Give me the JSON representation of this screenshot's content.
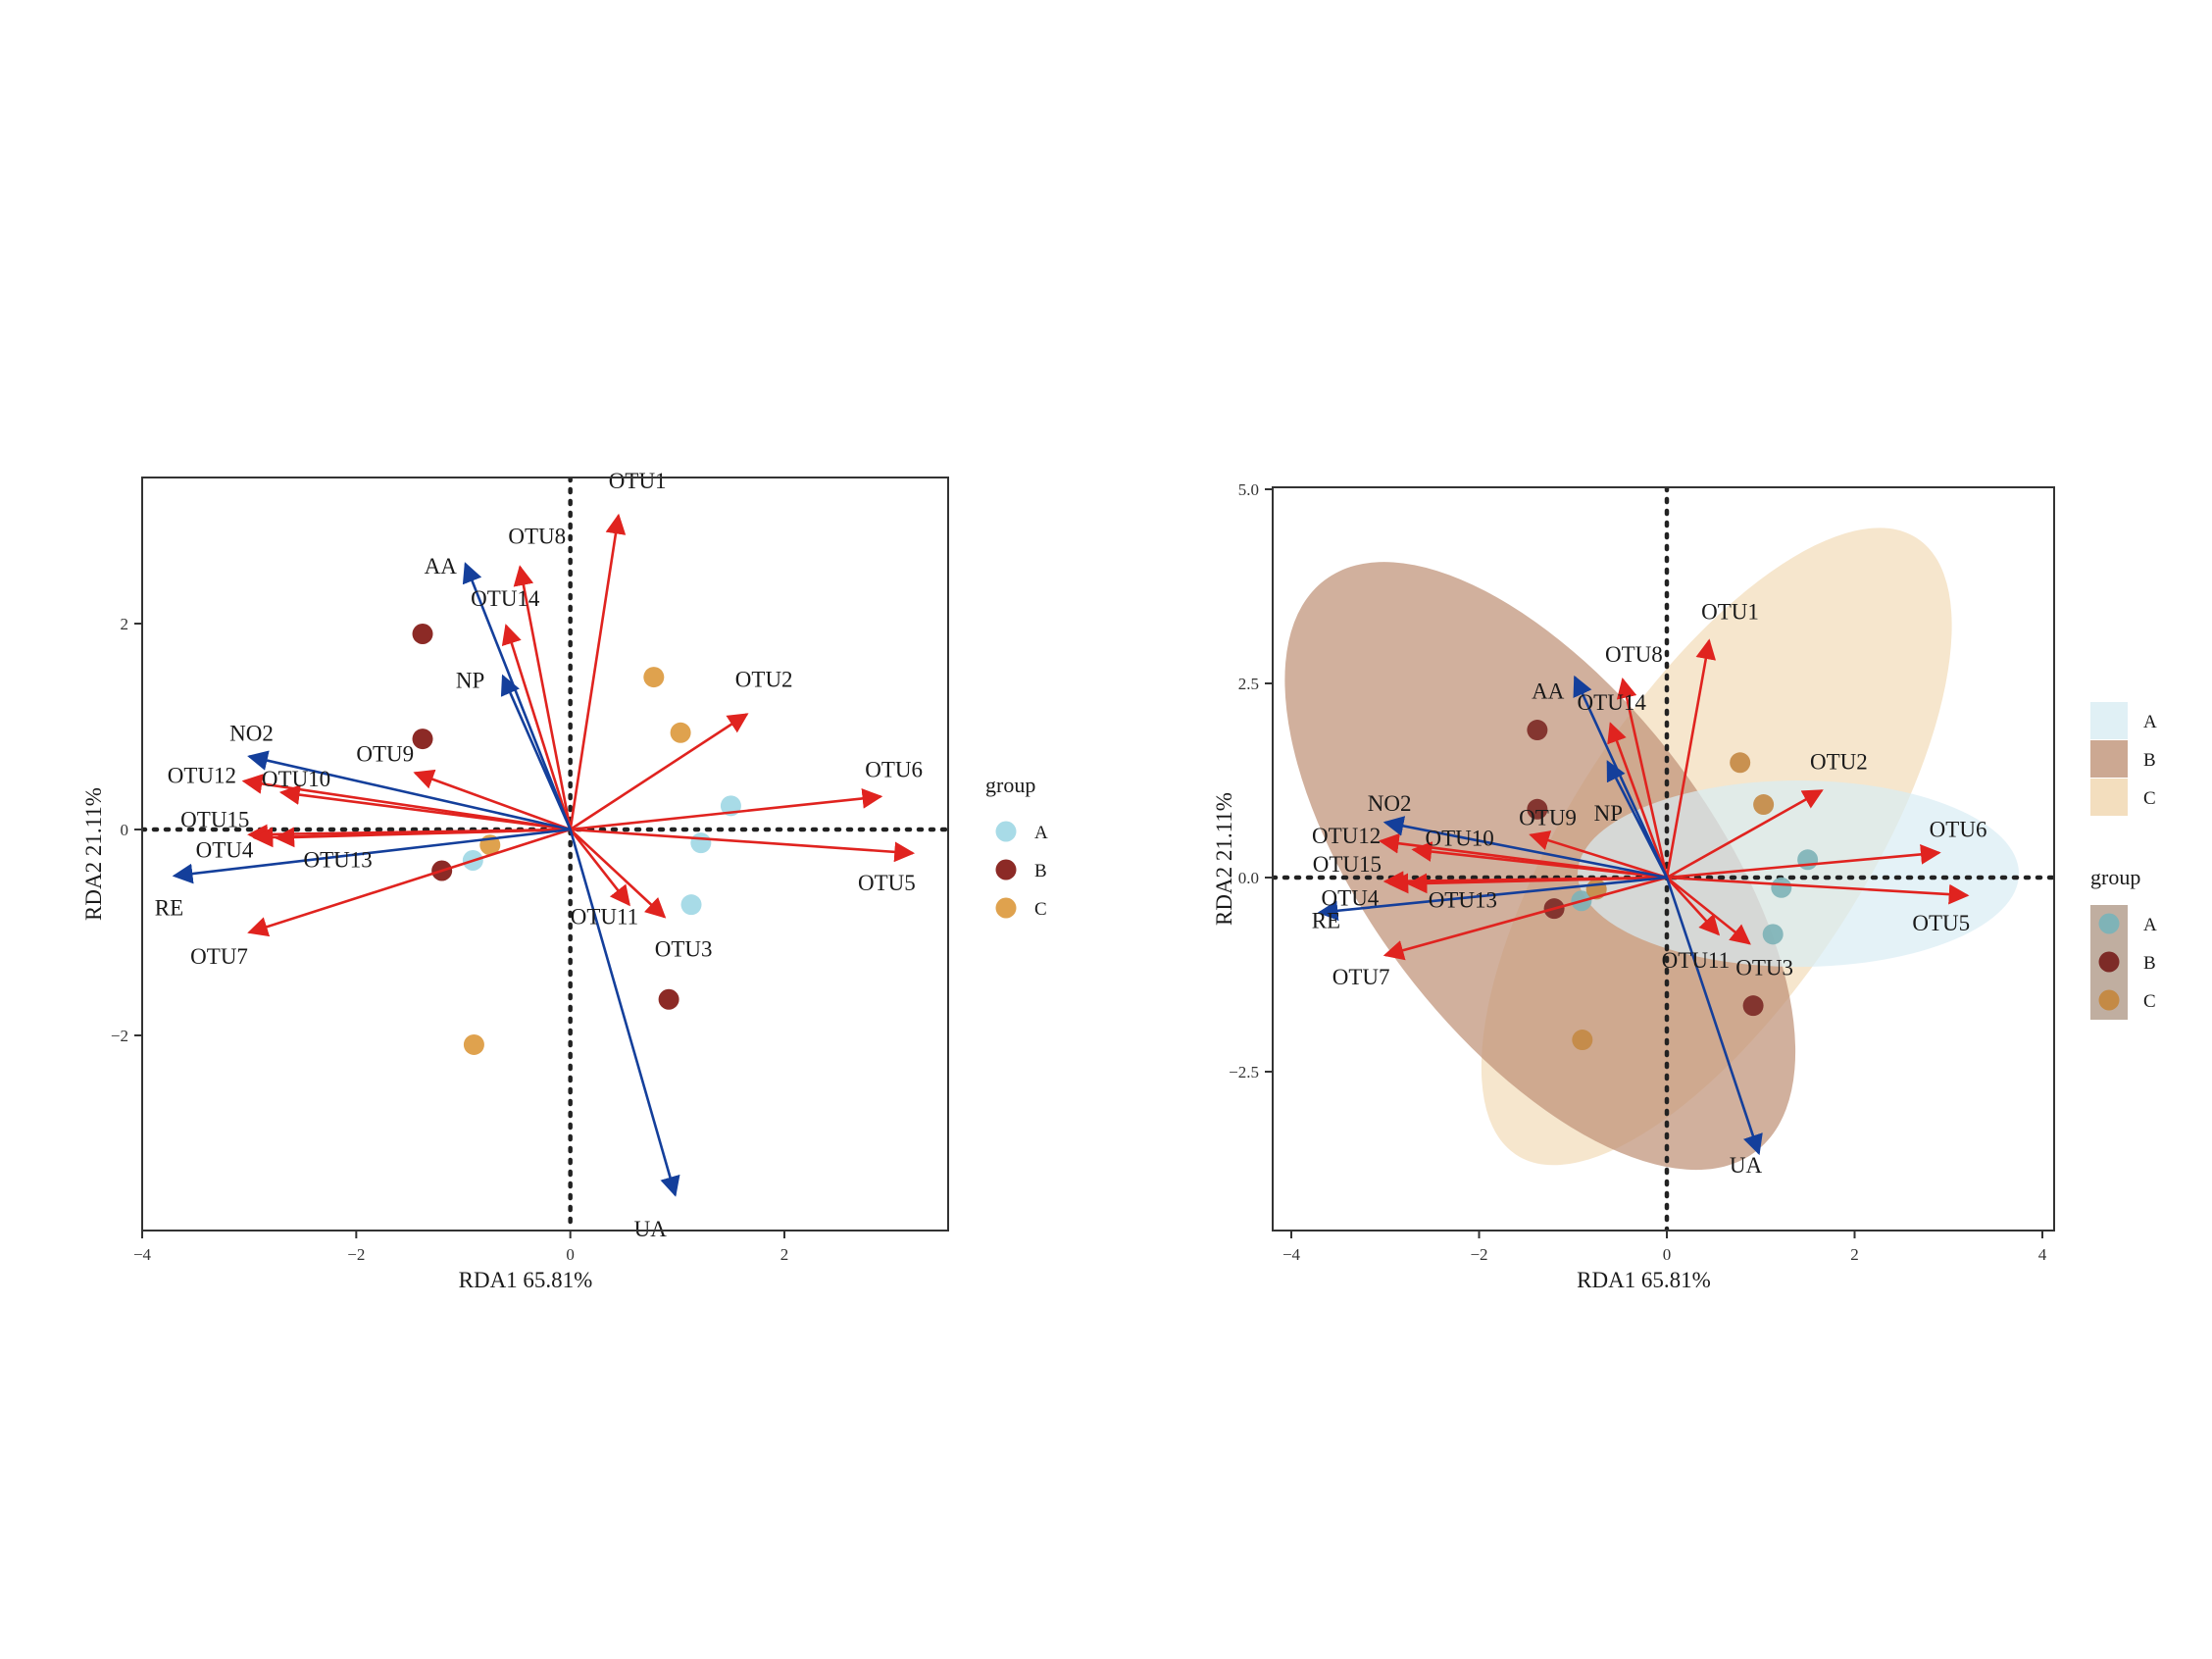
{
  "colors": {
    "otu_vector": "#e0231f",
    "env_vector": "#143f9b",
    "group_A": "#a8dbe7",
    "group_B": "#8c2a26",
    "group_C": "#dfa24e",
    "ellipse_A": "#d8ecf3",
    "ellipse_B": "#bf9277",
    "ellipse_C": "#f0d6ae",
    "point_A_in_right": "#7fb3b7",
    "point_B_in_right": "#7d2b27",
    "point_C_in_right": "#c48a45",
    "axis": "#333333"
  },
  "chart_data": [
    {
      "type": "scatter",
      "subtype": "rda-biplot",
      "title": "",
      "xlabel": "RDA1 65.81%",
      "ylabel": "RDA2 21.11%",
      "xlim": [
        -4,
        3.5
      ],
      "ylim": [
        -3.9,
        3.4
      ],
      "xticks": [
        -4,
        -2,
        0,
        2
      ],
      "yticks": [
        -2,
        0,
        2
      ],
      "xtick_labels": [
        "−4",
        "−2",
        "0",
        "2"
      ],
      "ytick_labels": [
        "−2",
        "0",
        "2"
      ],
      "grid": false,
      "reference_lines": "dotted lines at x=0 and y=0",
      "legend": {
        "title": "group",
        "position": "right",
        "entries": [
          "A",
          "B",
          "C"
        ]
      },
      "points": [
        {
          "group": "A",
          "x": 1.5,
          "y": 0.23
        },
        {
          "group": "A",
          "x": 1.22,
          "y": -0.13
        },
        {
          "group": "A",
          "x": 1.13,
          "y": -0.73
        },
        {
          "group": "A",
          "x": -0.91,
          "y": -0.3
        },
        {
          "group": "B",
          "x": -1.38,
          "y": 1.9
        },
        {
          "group": "B",
          "x": -1.38,
          "y": 0.88
        },
        {
          "group": "B",
          "x": -1.2,
          "y": -0.4
        },
        {
          "group": "B",
          "x": 0.92,
          "y": -1.65
        },
        {
          "group": "C",
          "x": 0.78,
          "y": 1.48
        },
        {
          "group": "C",
          "x": 1.03,
          "y": 0.94
        },
        {
          "group": "C",
          "x": -0.75,
          "y": -0.15
        },
        {
          "group": "C",
          "x": -0.9,
          "y": -2.09
        }
      ],
      "vectors": [
        {
          "name": "OTU1",
          "kind": "species",
          "x": 0.45,
          "y": 3.05
        },
        {
          "name": "OTU8",
          "kind": "species",
          "x": -0.47,
          "y": 2.55
        },
        {
          "name": "OTU14",
          "kind": "species",
          "x": -0.6,
          "y": 1.98
        },
        {
          "name": "OTU2",
          "kind": "species",
          "x": 1.65,
          "y": 1.12
        },
        {
          "name": "OTU6",
          "kind": "species",
          "x": 2.9,
          "y": 0.32
        },
        {
          "name": "OTU5",
          "kind": "species",
          "x": 3.2,
          "y": -0.23
        },
        {
          "name": "OTU9",
          "kind": "species",
          "x": -1.45,
          "y": 0.55
        },
        {
          "name": "OTU10",
          "kind": "species",
          "x": -2.7,
          "y": 0.36
        },
        {
          "name": "OTU12",
          "kind": "species",
          "x": -3.05,
          "y": 0.47
        },
        {
          "name": "OTU15",
          "kind": "species",
          "x": -3.0,
          "y": -0.05
        },
        {
          "name": "OTU4",
          "kind": "species",
          "x": -2.95,
          "y": -0.08
        },
        {
          "name": "OTU13",
          "kind": "species",
          "x": -2.75,
          "y": -0.08
        },
        {
          "name": "OTU7",
          "kind": "species",
          "x": -3.0,
          "y": -1.0
        },
        {
          "name": "OTU11",
          "kind": "species",
          "x": 0.55,
          "y": -0.73
        },
        {
          "name": "OTU3",
          "kind": "species",
          "x": 0.88,
          "y": -0.85
        },
        {
          "name": "AA",
          "kind": "environment",
          "x": -0.98,
          "y": 2.58
        },
        {
          "name": "NP",
          "kind": "environment",
          "x": -0.63,
          "y": 1.49
        },
        {
          "name": "NO2",
          "kind": "environment",
          "x": -3.0,
          "y": 0.71
        },
        {
          "name": "RE",
          "kind": "environment",
          "x": -3.7,
          "y": -0.45
        },
        {
          "name": "UA",
          "kind": "environment",
          "x": 0.98,
          "y": -3.55
        }
      ]
    },
    {
      "type": "scatter",
      "subtype": "rda-biplot-with-confidence-ellipses",
      "title": "",
      "xlabel": "RDA1 65.81%",
      "ylabel": "RDA2 21.11%",
      "xlim": [
        -4.1,
        4.1
      ],
      "ylim": [
        -4.6,
        5.0
      ],
      "xticks": [
        -4,
        -2,
        0,
        2,
        4
      ],
      "yticks": [
        -2.5,
        0.0,
        2.5,
        5.0
      ],
      "xtick_labels": [
        "−4",
        "−2",
        "0",
        "2",
        "4"
      ],
      "ytick_labels": [
        "−2.5",
        "0.0",
        "2.5",
        "5.0"
      ],
      "grid": false,
      "reference_lines": "dotted lines at x=0 and y=0",
      "legends": [
        {
          "title": "",
          "position": "right-top",
          "entries": [
            "A",
            "B",
            "C"
          ],
          "kind": "fill"
        },
        {
          "title": "group",
          "position": "right",
          "entries": [
            "A",
            "B",
            "C"
          ],
          "kind": "point"
        }
      ],
      "ellipses": [
        {
          "group": "A",
          "center": [
            1.4,
            0.05
          ],
          "semi_axis_x": 2.3,
          "semi_axis_y": 1.2
        },
        {
          "group": "B",
          "center": [
            -1.35,
            0.15
          ],
          "tilt": "negative slope",
          "extent_x": [
            -3.8,
            2.0
          ],
          "extent_y": [
            -3.8,
            4.4
          ]
        },
        {
          "group": "C",
          "center": [
            0.53,
            0.4
          ],
          "tilt": "positive slope",
          "extent_x": [
            -2.7,
            2.95
          ],
          "extent_y": [
            -4.1,
            4.6
          ]
        }
      ],
      "points": [
        {
          "group": "A",
          "x": 1.5,
          "y": 0.23
        },
        {
          "group": "A",
          "x": 1.22,
          "y": -0.13
        },
        {
          "group": "A",
          "x": 1.13,
          "y": -0.73
        },
        {
          "group": "A",
          "x": -0.91,
          "y": -0.3
        },
        {
          "group": "B",
          "x": -1.38,
          "y": 1.9
        },
        {
          "group": "B",
          "x": -1.38,
          "y": 0.88
        },
        {
          "group": "B",
          "x": -1.2,
          "y": -0.4
        },
        {
          "group": "B",
          "x": 0.92,
          "y": -1.65
        },
        {
          "group": "C",
          "x": 0.78,
          "y": 1.48
        },
        {
          "group": "C",
          "x": 1.03,
          "y": 0.94
        },
        {
          "group": "C",
          "x": -0.75,
          "y": -0.15
        },
        {
          "group": "C",
          "x": -0.9,
          "y": -2.09
        }
      ],
      "vectors": [
        {
          "name": "OTU1",
          "kind": "species",
          "x": 0.45,
          "y": 3.05
        },
        {
          "name": "OTU8",
          "kind": "species",
          "x": -0.47,
          "y": 2.55
        },
        {
          "name": "OTU14",
          "kind": "species",
          "x": -0.6,
          "y": 1.98
        },
        {
          "name": "OTU2",
          "kind": "species",
          "x": 1.65,
          "y": 1.12
        },
        {
          "name": "OTU6",
          "kind": "species",
          "x": 2.9,
          "y": 0.32
        },
        {
          "name": "OTU5",
          "kind": "species",
          "x": 3.2,
          "y": -0.23
        },
        {
          "name": "OTU9",
          "kind": "species",
          "x": -1.45,
          "y": 0.55
        },
        {
          "name": "OTU10",
          "kind": "species",
          "x": -2.7,
          "y": 0.36
        },
        {
          "name": "OTU12",
          "kind": "species",
          "x": -3.05,
          "y": 0.47
        },
        {
          "name": "OTU15",
          "kind": "species",
          "x": -3.0,
          "y": -0.05
        },
        {
          "name": "OTU4",
          "kind": "species",
          "x": -2.95,
          "y": -0.08
        },
        {
          "name": "OTU13",
          "kind": "species",
          "x": -2.75,
          "y": -0.08
        },
        {
          "name": "OTU7",
          "kind": "species",
          "x": -3.0,
          "y": -1.0
        },
        {
          "name": "OTU11",
          "kind": "species",
          "x": 0.55,
          "y": -0.73
        },
        {
          "name": "OTU3",
          "kind": "species",
          "x": 0.88,
          "y": -0.85
        },
        {
          "name": "AA",
          "kind": "environment",
          "x": -0.98,
          "y": 2.58
        },
        {
          "name": "NP",
          "kind": "environment",
          "x": -0.63,
          "y": 1.49
        },
        {
          "name": "NO2",
          "kind": "environment",
          "x": -3.0,
          "y": 0.71
        },
        {
          "name": "RE",
          "kind": "environment",
          "x": -3.7,
          "y": -0.45
        },
        {
          "name": "UA",
          "kind": "environment",
          "x": 0.98,
          "y": -3.55
        }
      ]
    }
  ]
}
